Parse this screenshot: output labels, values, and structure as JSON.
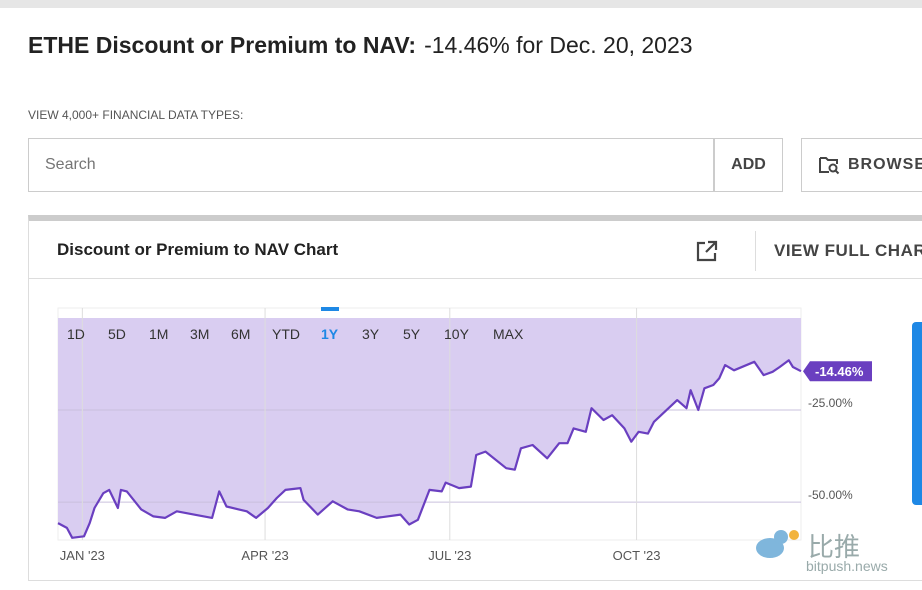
{
  "header": {
    "title": "ETHE Discount or Premium to NAV:",
    "value": "-14.46% for Dec. 20, 2023"
  },
  "search": {
    "hint": "VIEW 4,000+ FINANCIAL DATA TYPES:",
    "placeholder": "Search",
    "add_label": "ADD",
    "browse_label": "BROWSE"
  },
  "card": {
    "title": "Discount or Premium to NAV Chart",
    "full_chart_label": "VIEW FULL CHART"
  },
  "ranges": [
    "1D",
    "5D",
    "1M",
    "3M",
    "6M",
    "YTD",
    "1Y",
    "3Y",
    "5Y",
    "10Y",
    "MAX"
  ],
  "active_range": "1Y",
  "watermark": {
    "cn": "比推",
    "en": "bitpush.news"
  },
  "colors": {
    "line": "#6a3fc0",
    "fill": "#d9cdf1",
    "active": "#1e88e5",
    "badge": "#6a3fc0"
  },
  "chart_data": {
    "type": "area",
    "title": "Discount or Premium to NAV Chart",
    "x_unit": "days since Jan 1 2023",
    "xlim": [
      -12,
      354
    ],
    "ylim": [
      -60.3,
      0
    ],
    "x_ticks": [
      {
        "x": 0,
        "label": "JAN '23"
      },
      {
        "x": 90,
        "label": "APR '23"
      },
      {
        "x": 181,
        "label": "JUL '23"
      },
      {
        "x": 273,
        "label": "OCT '23"
      }
    ],
    "y_ticks": [
      {
        "y": -25,
        "label": "-25.00%"
      },
      {
        "y": -50,
        "label": "-50.00%"
      }
    ],
    "last_label": "-14.46%",
    "x": [
      -12,
      -7.6,
      -5,
      0.8,
      3.6,
      6,
      10.3,
      13.2,
      17.5,
      19,
      21.9,
      29,
      35,
      40.7,
      46.5,
      55,
      63.9,
      67.4,
      71,
      77,
      81,
      85.6,
      91.4,
      95.8,
      100,
      107.4,
      109,
      116,
      123.3,
      130.6,
      136.4,
      145,
      156.7,
      161,
      165.3,
      171,
      177,
      179,
      185.6,
      191.4,
      194,
      198.6,
      208.8,
      213,
      216,
      221.8,
      229,
      234.9,
      239,
      242,
      248,
      250.8,
      256.7,
      261,
      267,
      270.4,
      274,
      278.6,
      281.6,
      293,
      297.6,
      299.6,
      303.4,
      306.4,
      310.8,
      313.7,
      316.6,
      321,
      331,
      335.6,
      340,
      343.5,
      348,
      350,
      354
    ],
    "y": [
      -55.7,
      -57,
      -59.7,
      -59.3,
      -55.7,
      -51.6,
      -47.6,
      -46.7,
      -51.6,
      -46.7,
      -47.1,
      -52,
      -53.9,
      -54.3,
      -52.5,
      -53.4,
      -54.3,
      -47.1,
      -51.2,
      -52,
      -52.5,
      -54.3,
      -51.6,
      -48.9,
      -46.7,
      -46.2,
      -49.4,
      -53.4,
      -49.8,
      -52,
      -52.5,
      -54.3,
      -53.4,
      -56.1,
      -54.8,
      -46.7,
      -47.1,
      -44.7,
      -46.2,
      -45.8,
      -37.2,
      -36.3,
      -40.8,
      -41.2,
      -35.4,
      -34.5,
      -38.1,
      -34,
      -34,
      -30,
      -30.9,
      -24.5,
      -27.7,
      -26.4,
      -30,
      -33.6,
      -30.9,
      -31.4,
      -28.2,
      -22.3,
      -24.5,
      -19.6,
      -25,
      -19.1,
      -18.2,
      -16.4,
      -12.8,
      -14.2,
      -11.9,
      -15.5,
      -14.6,
      -13.3,
      -11.5,
      -13.3,
      -14.46
    ]
  }
}
